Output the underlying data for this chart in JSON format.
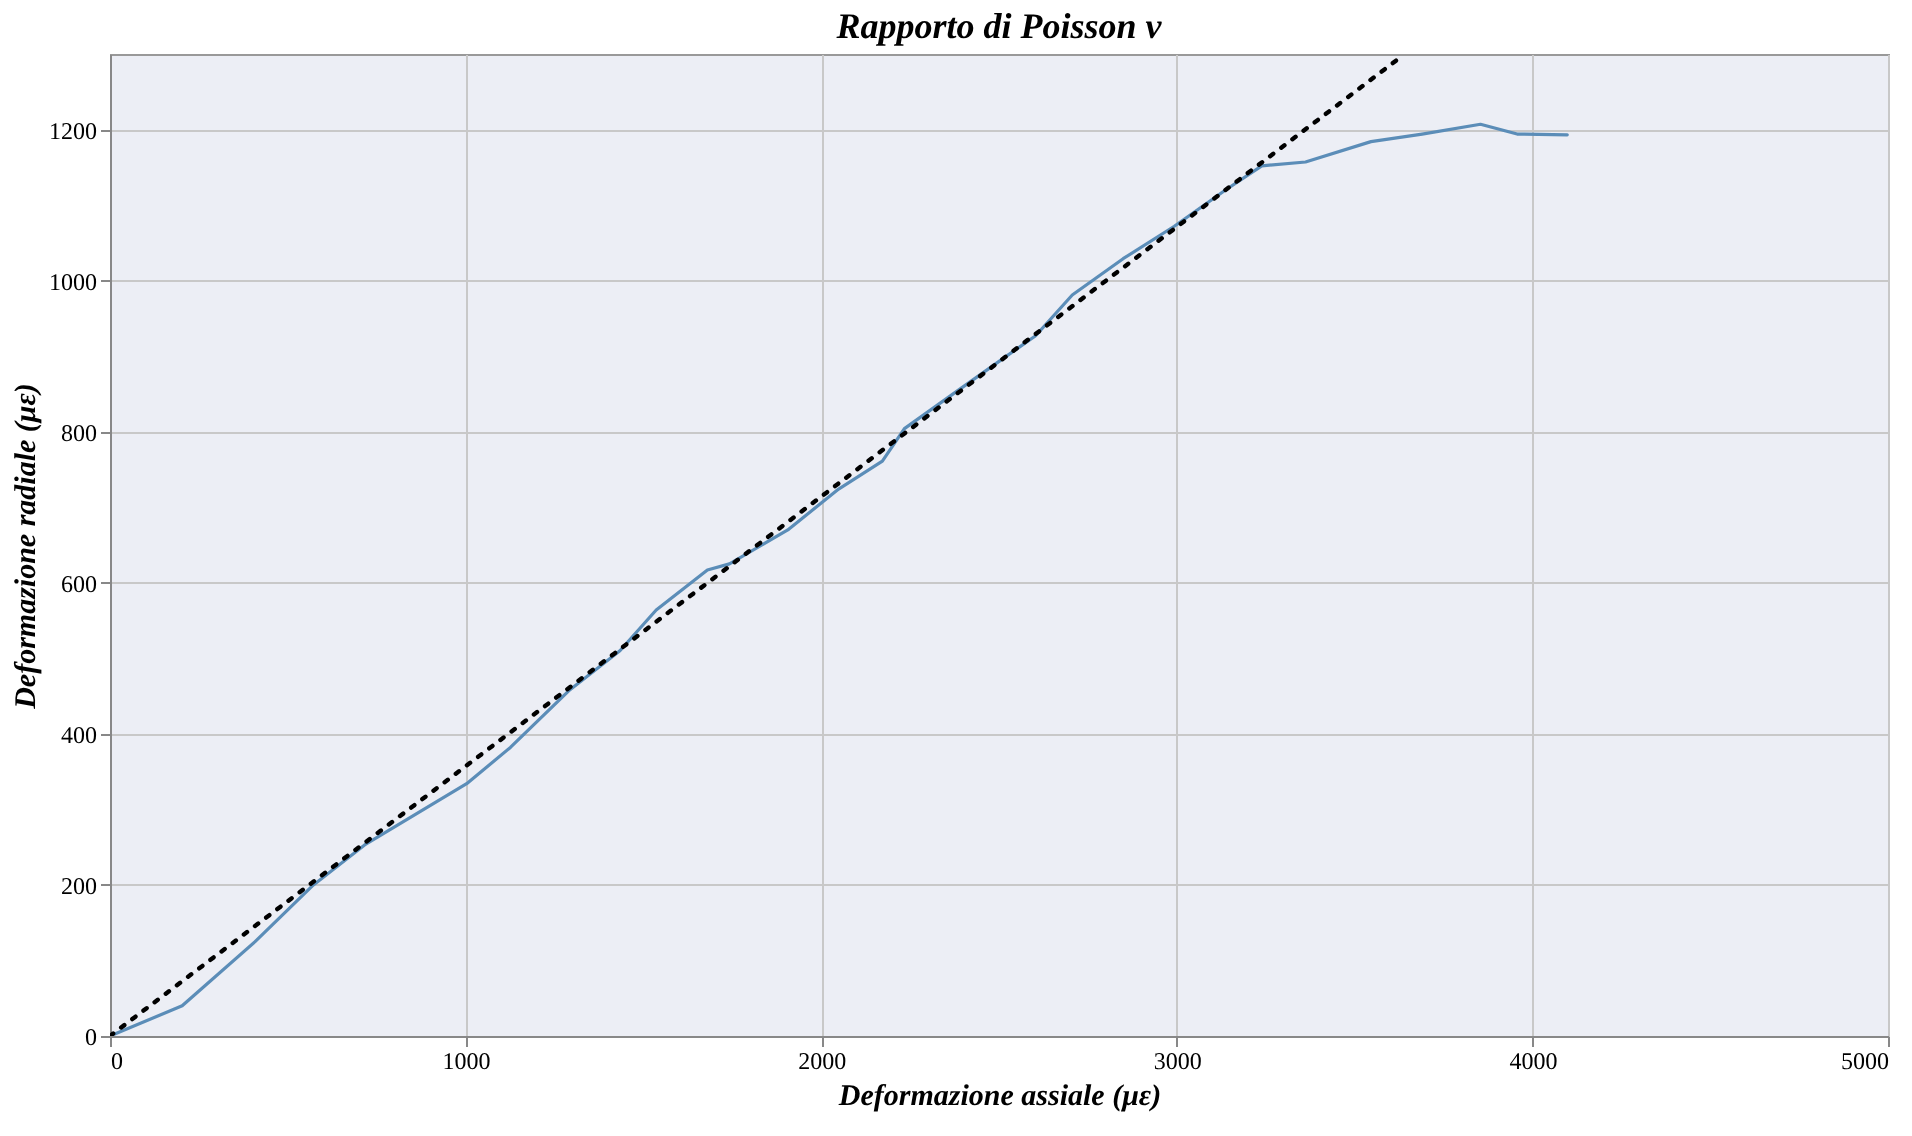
{
  "chart_data": {
    "type": "line",
    "title": "Rapporto di Poisson  ν",
    "xlabel": "Deformazione assiale  (με)",
    "ylabel": "Deformazione radiale  (με)",
    "xlim": [
      0,
      5000
    ],
    "xticks": [
      0,
      1000,
      2000,
      3000,
      4000,
      5000
    ],
    "ylim": [
      0,
      1300
    ],
    "yticks": [
      0,
      200,
      400,
      600,
      800,
      1000,
      1200
    ],
    "grid": true,
    "marker": "none",
    "series": [
      {
        "color": "#5b8db8",
        "line_style": "solid",
        "x": [
          0,
          203,
          408,
          572,
          716,
          1003,
          1126,
          1290,
          1434,
          1536,
          1680,
          1742,
          1906,
          2049,
          2172,
          2234,
          2377,
          2521,
          2603,
          2706,
          2849,
          2993,
          3137,
          3239,
          3362,
          3546,
          3690,
          3854,
          3957,
          4098
        ],
        "values": [
          0,
          40,
          125,
          200,
          253,
          334,
          382,
          457,
          510,
          564,
          617,
          625,
          670,
          724,
          761,
          804,
          852,
          900,
          927,
          981,
          1029,
          1072,
          1120,
          1152,
          1157,
          1184,
          1194,
          1207,
          1194,
          1193
        ]
      },
      {
        "color": "#000000",
        "line_style": "dotted",
        "x": [
          0,
          3630
        ],
        "values": [
          0,
          1296
        ]
      }
    ]
  }
}
